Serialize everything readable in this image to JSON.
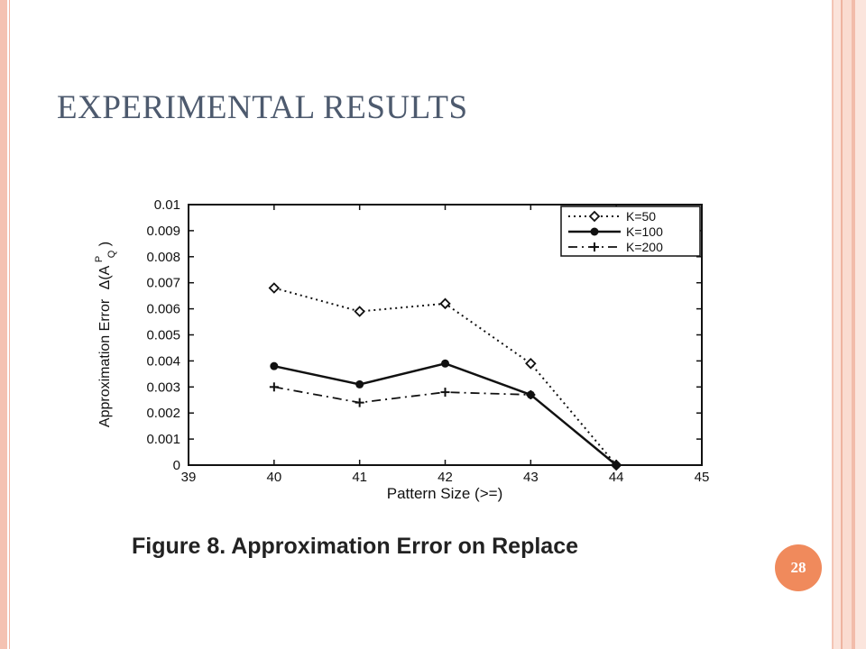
{
  "slide": {
    "title": "EXPERIMENTAL RESULTS",
    "caption": "Figure 8. Approximation Error on Replace",
    "page_number": "28"
  },
  "colors": {
    "title": "#4d5a6e",
    "badge": "#f08a5c",
    "frame": "#f4c2b2"
  },
  "chart_data": {
    "type": "line",
    "xlabel": "Pattern Size (>=)",
    "ylabel_text": "Approximation Error",
    "ylabel_math": "Δ(A",
    "ylabel_sup": "P",
    "ylabel_sub": "Q",
    "ylabel_close": ")",
    "xlim": [
      39,
      45
    ],
    "ylim": [
      0,
      0.01
    ],
    "x_ticks": [
      39,
      40,
      41,
      42,
      43,
      44,
      45
    ],
    "x_tick_labels": [
      "39",
      "40",
      "41",
      "42",
      "43",
      "44",
      "45"
    ],
    "y_ticks": [
      0,
      0.001,
      0.002,
      0.003,
      0.004,
      0.005,
      0.006,
      0.007,
      0.008,
      0.009,
      0.01
    ],
    "y_tick_labels": [
      "0",
      "0.001",
      "0.002",
      "0.003",
      "0.004",
      "0.005",
      "0.006",
      "0.007",
      "0.008",
      "0.009",
      "0.01"
    ],
    "grid": false,
    "legend_position": "top-right",
    "series": [
      {
        "name": "K=50",
        "line": "dotted",
        "marker": "diamond",
        "x": [
          40,
          41,
          42,
          43,
          44
        ],
        "y": [
          0.0068,
          0.0059,
          0.0062,
          0.0039,
          0.0
        ]
      },
      {
        "name": "K=100",
        "line": "solid",
        "marker": "dot",
        "x": [
          40,
          41,
          42,
          43,
          44
        ],
        "y": [
          0.0038,
          0.0031,
          0.0039,
          0.0027,
          0.0
        ]
      },
      {
        "name": "K=200",
        "line": "dashdot",
        "marker": "plus",
        "x": [
          40,
          41,
          42,
          43,
          44
        ],
        "y": [
          0.003,
          0.0024,
          0.0028,
          0.0027,
          0.0
        ]
      }
    ]
  }
}
